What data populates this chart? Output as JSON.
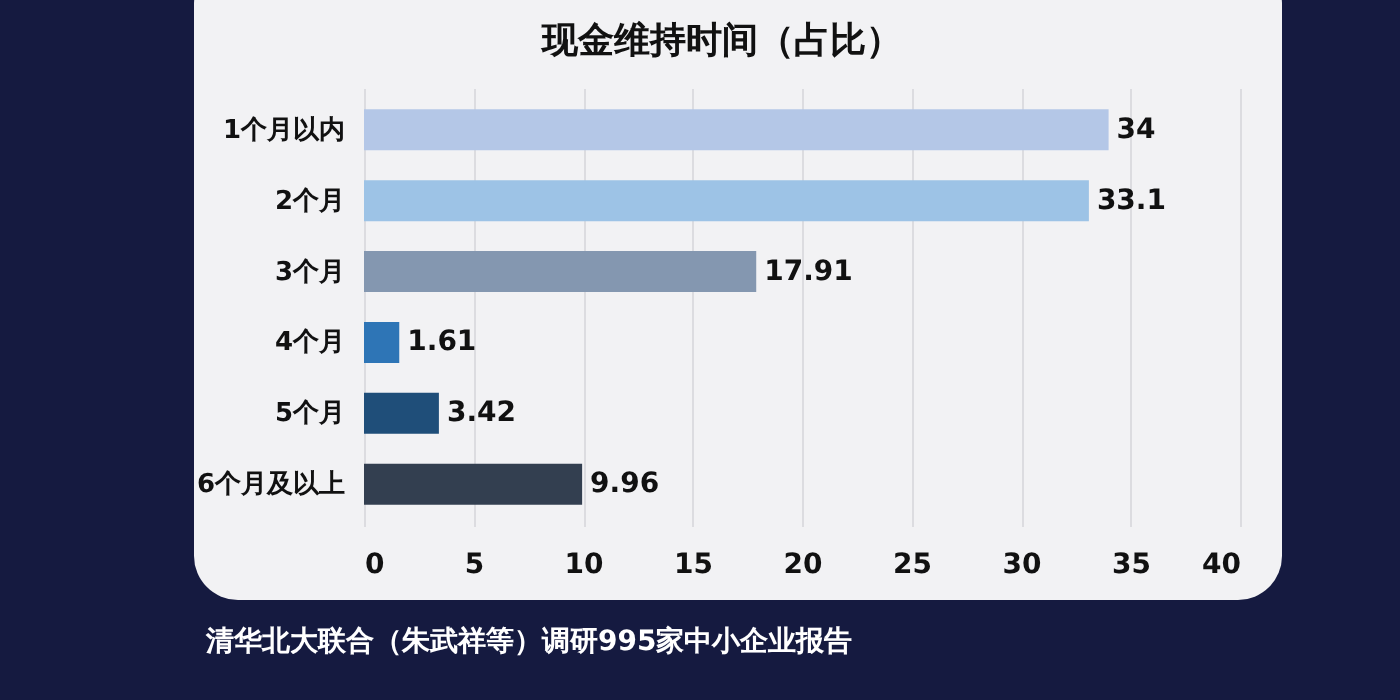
{
  "chart_data": {
    "type": "bar",
    "orientation": "horizontal",
    "title": "现金维持时间（占比）",
    "categories": [
      "1个月以内",
      "2个月",
      "3个月",
      "4个月",
      "5个月",
      "6个月及以上"
    ],
    "values": [
      34,
      33.1,
      17.91,
      1.61,
      3.42,
      9.96
    ],
    "colors": [
      "#b4c7e7",
      "#9dc3e6",
      "#8497b0",
      "#2e75b6",
      "#1f4e79",
      "#333f50"
    ],
    "xlim": [
      0,
      40
    ],
    "xticks": [
      0,
      5,
      10,
      15,
      20,
      25,
      30,
      35,
      40
    ],
    "grid": "x",
    "data_labels": true,
    "annotations": [
      "清华北大联合（朱武祥等）调研995家中小企业报告"
    ]
  }
}
